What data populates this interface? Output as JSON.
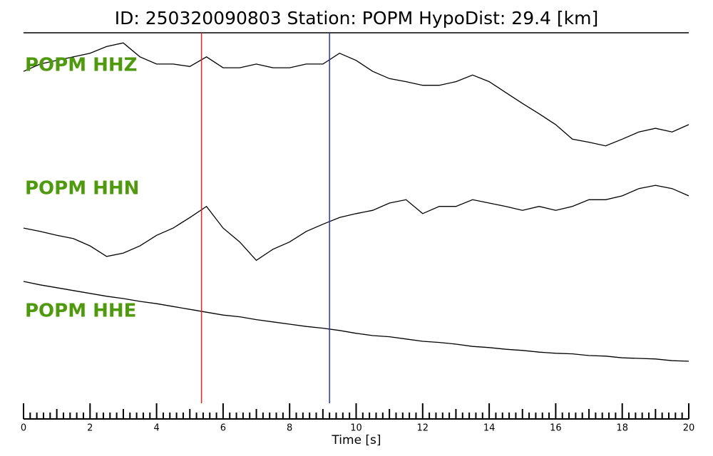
{
  "chart_data": {
    "type": "line",
    "title": "ID: 250320090803   Station: POPM   HypoDist:    29.4 [km]",
    "xlabel": "Time [s]",
    "xlim": [
      0,
      20
    ],
    "xticks": [
      0,
      2,
      4,
      6,
      8,
      10,
      12,
      14,
      16,
      18,
      20
    ],
    "xminorticks": [
      0.2,
      0.4,
      0.6,
      0.8,
      1,
      1.2,
      1.4,
      1.6,
      1.8,
      2.2,
      2.4,
      2.6,
      2.8,
      3,
      3.2,
      3.4,
      3.6,
      3.8,
      4.2,
      4.4,
      4.6,
      4.8,
      5,
      5.2,
      5.4,
      5.6,
      5.8,
      6.2,
      6.4,
      6.6,
      6.8,
      7,
      7.2,
      7.4,
      7.6,
      7.8,
      8.2,
      8.4,
      8.6,
      8.8,
      9,
      9.2,
      9.4,
      9.6,
      9.8,
      10.2,
      10.4,
      10.6,
      10.8,
      11,
      11.2,
      11.4,
      11.6,
      11.8,
      12.2,
      12.4,
      12.6,
      12.8,
      13,
      13.2,
      13.4,
      13.6,
      13.8,
      14.2,
      14.4,
      14.6,
      14.8,
      15,
      15.2,
      15.4,
      15.6,
      15.8,
      16.2,
      16.4,
      16.6,
      16.8,
      17,
      17.2,
      17.4,
      17.6,
      17.8,
      18.2,
      18.4,
      18.6,
      18.8,
      19,
      19.2,
      19.4,
      19.6,
      19.8
    ],
    "ylim": [
      -1,
      1
    ],
    "label_color": "#4d9a0a",
    "x": [
      0,
      0.5,
      1,
      1.5,
      2,
      2.5,
      3,
      3.5,
      4,
      4.5,
      5,
      5.5,
      6,
      6.5,
      7,
      7.5,
      8,
      8.5,
      9,
      9.5,
      10,
      10.5,
      11,
      11.5,
      12,
      12.5,
      13,
      13.5,
      14,
      14.5,
      15,
      15.5,
      16,
      16.5,
      17,
      17.5,
      18,
      18.5,
      19,
      19.5,
      20
    ],
    "series": [
      {
        "name": "POPM HHZ",
        "color": "#000000",
        "values": [
          0.41,
          0.53,
          0.59,
          0.65,
          0.71,
          0.82,
          0.88,
          0.65,
          0.53,
          0.53,
          0.49,
          0.65,
          0.47,
          0.47,
          0.53,
          0.47,
          0.47,
          0.53,
          0.53,
          0.71,
          0.59,
          0.41,
          0.29,
          0.24,
          0.18,
          0.18,
          0.24,
          0.35,
          0.24,
          0.06,
          -0.12,
          -0.29,
          -0.47,
          -0.71,
          -0.76,
          -0.82,
          -0.71,
          -0.59,
          -0.53,
          -0.59,
          -0.47
        ]
      },
      {
        "name": "POPM HHN",
        "color": "#000000",
        "values": [
          -0.04,
          -0.1,
          -0.17,
          -0.23,
          -0.36,
          -0.55,
          -0.49,
          -0.36,
          -0.17,
          -0.04,
          0.15,
          0.35,
          -0.04,
          -0.29,
          -0.62,
          -0.42,
          -0.29,
          -0.1,
          0.03,
          0.15,
          0.22,
          0.28,
          0.41,
          0.47,
          0.22,
          0.35,
          0.35,
          0.47,
          0.41,
          0.35,
          0.28,
          0.35,
          0.28,
          0.35,
          0.47,
          0.47,
          0.54,
          0.67,
          0.73,
          0.67,
          0.54
        ]
      },
      {
        "name": "POPM HHE",
        "color": "#000000",
        "values": [
          1,
          0.94,
          0.89,
          0.84,
          0.79,
          0.74,
          0.7,
          0.65,
          0.61,
          0.56,
          0.51,
          0.46,
          0.41,
          0.38,
          0.33,
          0.29,
          0.25,
          0.21,
          0.18,
          0.14,
          0.09,
          0.05,
          0.03,
          -0.01,
          -0.05,
          -0.07,
          -0.1,
          -0.14,
          -0.16,
          -0.19,
          -0.21,
          -0.24,
          -0.26,
          -0.27,
          -0.3,
          -0.31,
          -0.34,
          -0.35,
          -0.36,
          -0.39,
          -0.4
        ]
      }
    ],
    "markers": [
      {
        "x": 5.35,
        "color": "#e8231f"
      },
      {
        "x": 9.2,
        "color": "#2036d8"
      }
    ]
  }
}
